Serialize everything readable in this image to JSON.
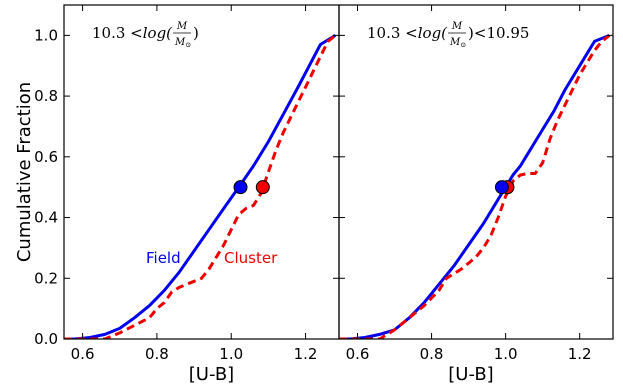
{
  "chart_data": [
    {
      "type": "line",
      "panel": "left",
      "annotation": {
        "lead": "10.3 <",
        "func": "log(",
        "num": "M",
        "den": "M",
        "den_sub": "⊙",
        "close": ")",
        "tail": ""
      },
      "xlabel": "[U-B]",
      "ylabel": "Cumulative Fraction",
      "xlim": [
        0.55,
        1.29
      ],
      "ylim": [
        0.0,
        1.1
      ],
      "xticks": [
        0.6,
        0.8,
        1.0,
        1.2
      ],
      "xtick_labels": [
        "0.6",
        "0.8",
        "1.0",
        "1.2"
      ],
      "yticks": [
        0.0,
        0.2,
        0.4,
        0.6,
        0.8,
        1.0
      ],
      "ytick_labels": [
        "0.0",
        "0.2",
        "0.4",
        "0.6",
        "0.8",
        "1.0"
      ],
      "legend_labels": [
        {
          "text": "Field",
          "color": "#0000ee"
        },
        {
          "text": "Cluster",
          "color": "#ee0000"
        }
      ],
      "series": [
        {
          "name": "Field",
          "color": "#0000ee",
          "style": "solid",
          "x": [
            0.55,
            0.58,
            0.62,
            0.66,
            0.7,
            0.74,
            0.78,
            0.82,
            0.86,
            0.9,
            0.94,
            0.98,
            1.02,
            1.06,
            1.1,
            1.14,
            1.18,
            1.21,
            1.24,
            1.28
          ],
          "y": [
            0.0,
            0.0,
            0.005,
            0.015,
            0.035,
            0.07,
            0.11,
            0.16,
            0.22,
            0.29,
            0.36,
            0.43,
            0.5,
            0.57,
            0.65,
            0.74,
            0.83,
            0.9,
            0.97,
            1.0
          ],
          "median_marker": {
            "x": 1.025,
            "y": 0.5
          }
        },
        {
          "name": "Cluster",
          "color": "#ee0000",
          "style": "dashed",
          "x": [
            0.55,
            0.66,
            0.7,
            0.74,
            0.78,
            0.8,
            0.82,
            0.84,
            0.86,
            0.88,
            0.9,
            0.92,
            0.94,
            0.96,
            0.98,
            1.0,
            1.02,
            1.04,
            1.06,
            1.08,
            1.1,
            1.12,
            1.14,
            1.16,
            1.18,
            1.2,
            1.22,
            1.24,
            1.26,
            1.28
          ],
          "y": [
            0.0,
            0.0,
            0.02,
            0.045,
            0.07,
            0.1,
            0.12,
            0.155,
            0.17,
            0.18,
            0.19,
            0.2,
            0.23,
            0.27,
            0.31,
            0.36,
            0.41,
            0.43,
            0.44,
            0.48,
            0.55,
            0.62,
            0.68,
            0.73,
            0.78,
            0.83,
            0.88,
            0.93,
            0.98,
            1.0
          ],
          "median_marker": {
            "x": 1.085,
            "y": 0.5
          }
        }
      ]
    },
    {
      "type": "line",
      "panel": "right",
      "annotation": {
        "lead": "10.3 <",
        "func": "log(",
        "num": "M",
        "den": "M",
        "den_sub": "⊙",
        "close": ")",
        "tail": "<10.95"
      },
      "xlabel": "[U-B]",
      "ylabel": "",
      "xlim": [
        0.55,
        1.29
      ],
      "ylim": [
        0.0,
        1.1
      ],
      "xticks": [
        0.6,
        0.8,
        1.0,
        1.2
      ],
      "xtick_labels": [
        "0.6",
        "0.8",
        "1.0",
        "1.2"
      ],
      "yticks": [
        0.0,
        0.2,
        0.4,
        0.6,
        0.8,
        1.0
      ],
      "ytick_labels": [],
      "legend_labels": [],
      "series": [
        {
          "name": "Field",
          "color": "#0000ee",
          "style": "solid",
          "x": [
            0.55,
            0.58,
            0.62,
            0.66,
            0.7,
            0.74,
            0.78,
            0.82,
            0.86,
            0.9,
            0.94,
            0.98,
            1.0,
            1.02,
            1.04,
            1.06,
            1.08,
            1.1,
            1.13,
            1.16,
            1.2,
            1.24,
            1.28
          ],
          "y": [
            0.0,
            0.0,
            0.005,
            0.015,
            0.03,
            0.07,
            0.12,
            0.18,
            0.24,
            0.31,
            0.38,
            0.46,
            0.5,
            0.54,
            0.57,
            0.61,
            0.65,
            0.69,
            0.75,
            0.82,
            0.9,
            0.98,
            1.0
          ],
          "median_marker": {
            "x": 0.99,
            "y": 0.5
          }
        },
        {
          "name": "Cluster",
          "color": "#ee0000",
          "style": "dashed",
          "x": [
            0.55,
            0.66,
            0.7,
            0.74,
            0.78,
            0.82,
            0.84,
            0.86,
            0.88,
            0.9,
            0.92,
            0.94,
            0.96,
            0.98,
            1.0,
            1.02,
            1.04,
            1.06,
            1.08,
            1.1,
            1.12,
            1.14,
            1.16,
            1.18,
            1.2,
            1.22,
            1.24,
            1.26,
            1.28
          ],
          "y": [
            0.0,
            0.0,
            0.03,
            0.07,
            0.11,
            0.16,
            0.2,
            0.215,
            0.23,
            0.25,
            0.27,
            0.3,
            0.34,
            0.4,
            0.47,
            0.52,
            0.54,
            0.545,
            0.545,
            0.58,
            0.66,
            0.72,
            0.77,
            0.82,
            0.87,
            0.91,
            0.95,
            0.98,
            1.0
          ],
          "median_marker": {
            "x": 1.005,
            "y": 0.5
          }
        }
      ]
    }
  ]
}
